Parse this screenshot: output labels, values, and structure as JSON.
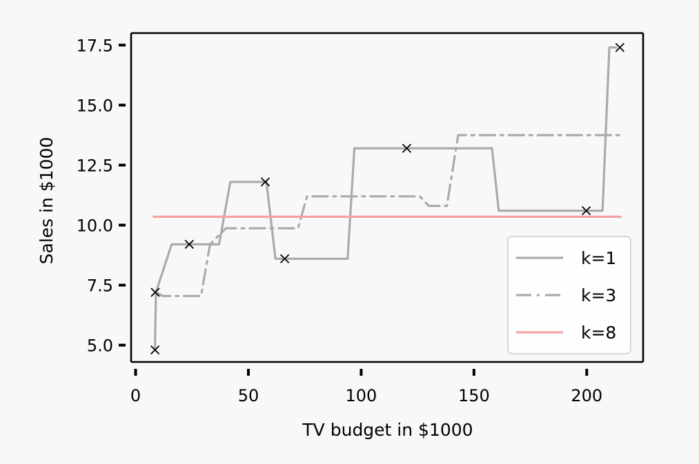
{
  "chart_data": {
    "type": "line",
    "title": "",
    "xlabel": "TV budget in $1000",
    "ylabel": "Sales in $1000",
    "xlim": [
      -2,
      225
    ],
    "ylim": [
      4.3,
      18.0
    ],
    "xticks": [
      0,
      50,
      100,
      150,
      200
    ],
    "xtick_labels": [
      "0",
      "50",
      "100",
      "150",
      "200"
    ],
    "yticks": [
      5.0,
      7.5,
      10.0,
      12.5,
      15.0,
      17.5
    ],
    "ytick_labels": [
      "5.0",
      "7.5",
      "10.0",
      "12.5",
      "15.0",
      "17.5"
    ],
    "grid": false,
    "legend_position": "lower-right",
    "points": {
      "x": [
        8.6,
        8.7,
        23.8,
        57.5,
        66.1,
        120.2,
        199.8,
        214.7
      ],
      "y": [
        4.8,
        7.2,
        9.2,
        11.8,
        8.6,
        13.2,
        10.6,
        17.4
      ],
      "marker": "x"
    },
    "series": [
      {
        "name": "k=1",
        "style": "solid",
        "color": "#aaaaaa",
        "x": [
          8.6,
          9,
          16,
          17,
          37,
          42,
          58,
          62,
          66,
          94,
          97,
          120,
          158,
          161,
          199.8,
          207,
          210,
          213
        ],
        "y": [
          4.9,
          7.2,
          9.2,
          9.2,
          9.2,
          11.8,
          11.8,
          8.6,
          8.6,
          8.6,
          13.2,
          13.2,
          13.2,
          10.6,
          10.6,
          10.6,
          17.4,
          17.4
        ]
      },
      {
        "name": "k=3",
        "style": "dashdot",
        "color": "#aaaaaa",
        "x": [
          9,
          12,
          29,
          33,
          40,
          72,
          76,
          126,
          130,
          138,
          143,
          215
        ],
        "y": [
          7.2,
          7.05,
          7.05,
          9.2,
          9.87,
          9.87,
          11.2,
          11.2,
          10.8,
          10.8,
          13.75,
          13.75
        ]
      },
      {
        "name": "k=8",
        "style": "solid",
        "color": "#f4a3a3",
        "x": [
          8,
          215
        ],
        "y": [
          10.35,
          10.35
        ]
      }
    ]
  }
}
